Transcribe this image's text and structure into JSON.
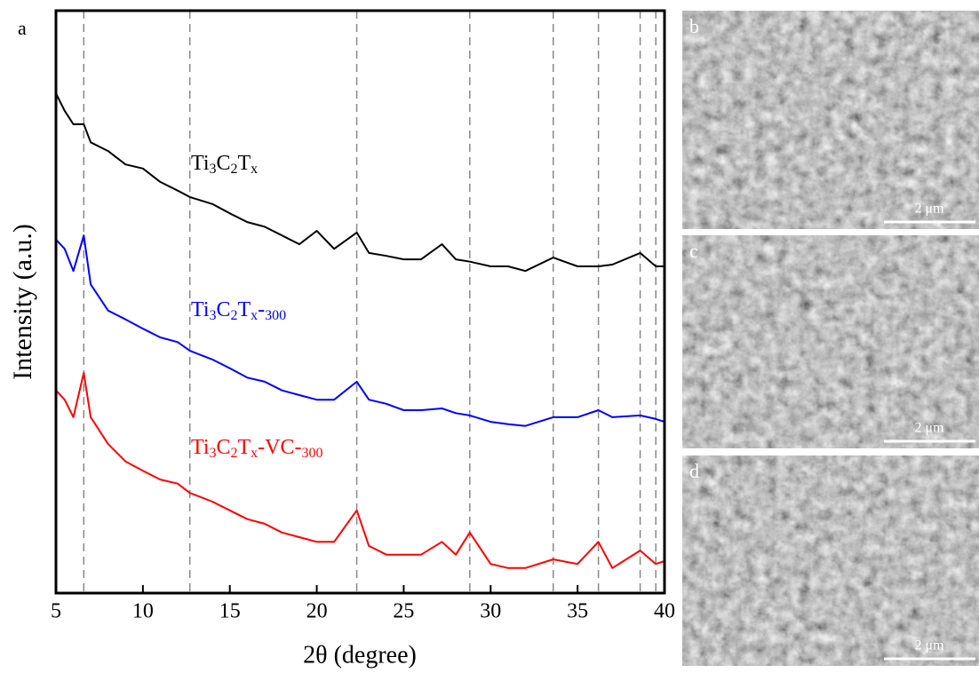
{
  "chart_data": {
    "type": "line",
    "panel_label": "a",
    "xlabel": "2θ (degree)",
    "ylabel": "Intensity (a.u.)",
    "x": [
      5,
      5.5,
      6,
      6.6,
      7,
      8,
      9,
      10,
      11,
      12,
      12.7,
      14,
      15,
      16,
      17,
      18,
      19,
      20,
      21,
      22.3,
      23,
      24,
      25,
      26,
      27.2,
      28,
      28.8,
      30,
      31,
      32,
      33.6,
      35,
      36.2,
      37,
      38.6,
      39.5,
      40
    ],
    "series": [
      {
        "name": "Ti3C2Tx",
        "color": "#000000",
        "values": [
          85.8,
          82.8,
          80.5,
          80.5,
          77.4,
          75.9,
          73.6,
          72.9,
          70.6,
          69.1,
          68.0,
          66.8,
          65.2,
          63.7,
          62.9,
          61.4,
          59.9,
          62.2,
          59.1,
          61.9,
          58.4,
          57.9,
          57.3,
          57.3,
          59.9,
          57.3,
          56.9,
          56.1,
          56.1,
          55.3,
          57.6,
          56.1,
          56.1,
          56.4,
          58.4,
          56.1,
          56.1
        ]
      },
      {
        "name": "Ti3C2Tx-300",
        "color": "#0000ff",
        "values": [
          60.7,
          59.1,
          55.3,
          61.4,
          53.0,
          48.5,
          47.0,
          45.4,
          43.9,
          43.1,
          41.6,
          40.1,
          38.6,
          37.0,
          36.3,
          34.8,
          34.0,
          33.2,
          33.2,
          36.3,
          33.2,
          32.5,
          31.4,
          31.4,
          31.7,
          30.9,
          30.5,
          29.4,
          29.0,
          28.7,
          30.2,
          30.2,
          31.4,
          30.2,
          30.5,
          29.9,
          29.4
        ]
      },
      {
        "name": "Ti3C2Tx-VC-300",
        "color": "#ff0000",
        "values": [
          34.8,
          33.2,
          30.2,
          37.8,
          30.2,
          25.6,
          22.6,
          21.0,
          19.5,
          18.8,
          17.2,
          15.7,
          14.2,
          12.7,
          11.9,
          10.4,
          9.6,
          8.8,
          8.8,
          14.2,
          8.1,
          6.6,
          6.6,
          6.6,
          8.8,
          6.6,
          10.4,
          5.0,
          4.3,
          4.3,
          5.8,
          5.0,
          8.8,
          4.3,
          7.3,
          5.0,
          5.5
        ]
      }
    ],
    "xlim": [
      5,
      40
    ],
    "xticks": [
      5,
      10,
      15,
      20,
      25,
      30,
      35,
      40
    ],
    "ylim": [
      0,
      100
    ],
    "vlines": [
      6.6,
      12.7,
      22.3,
      28.8,
      33.6,
      36.2,
      38.6,
      39.5
    ]
  },
  "images": [
    {
      "label": "b",
      "scale": "2 μm"
    },
    {
      "label": "c",
      "scale": "2 μm"
    },
    {
      "label": "d",
      "scale": "2 μm"
    }
  ]
}
